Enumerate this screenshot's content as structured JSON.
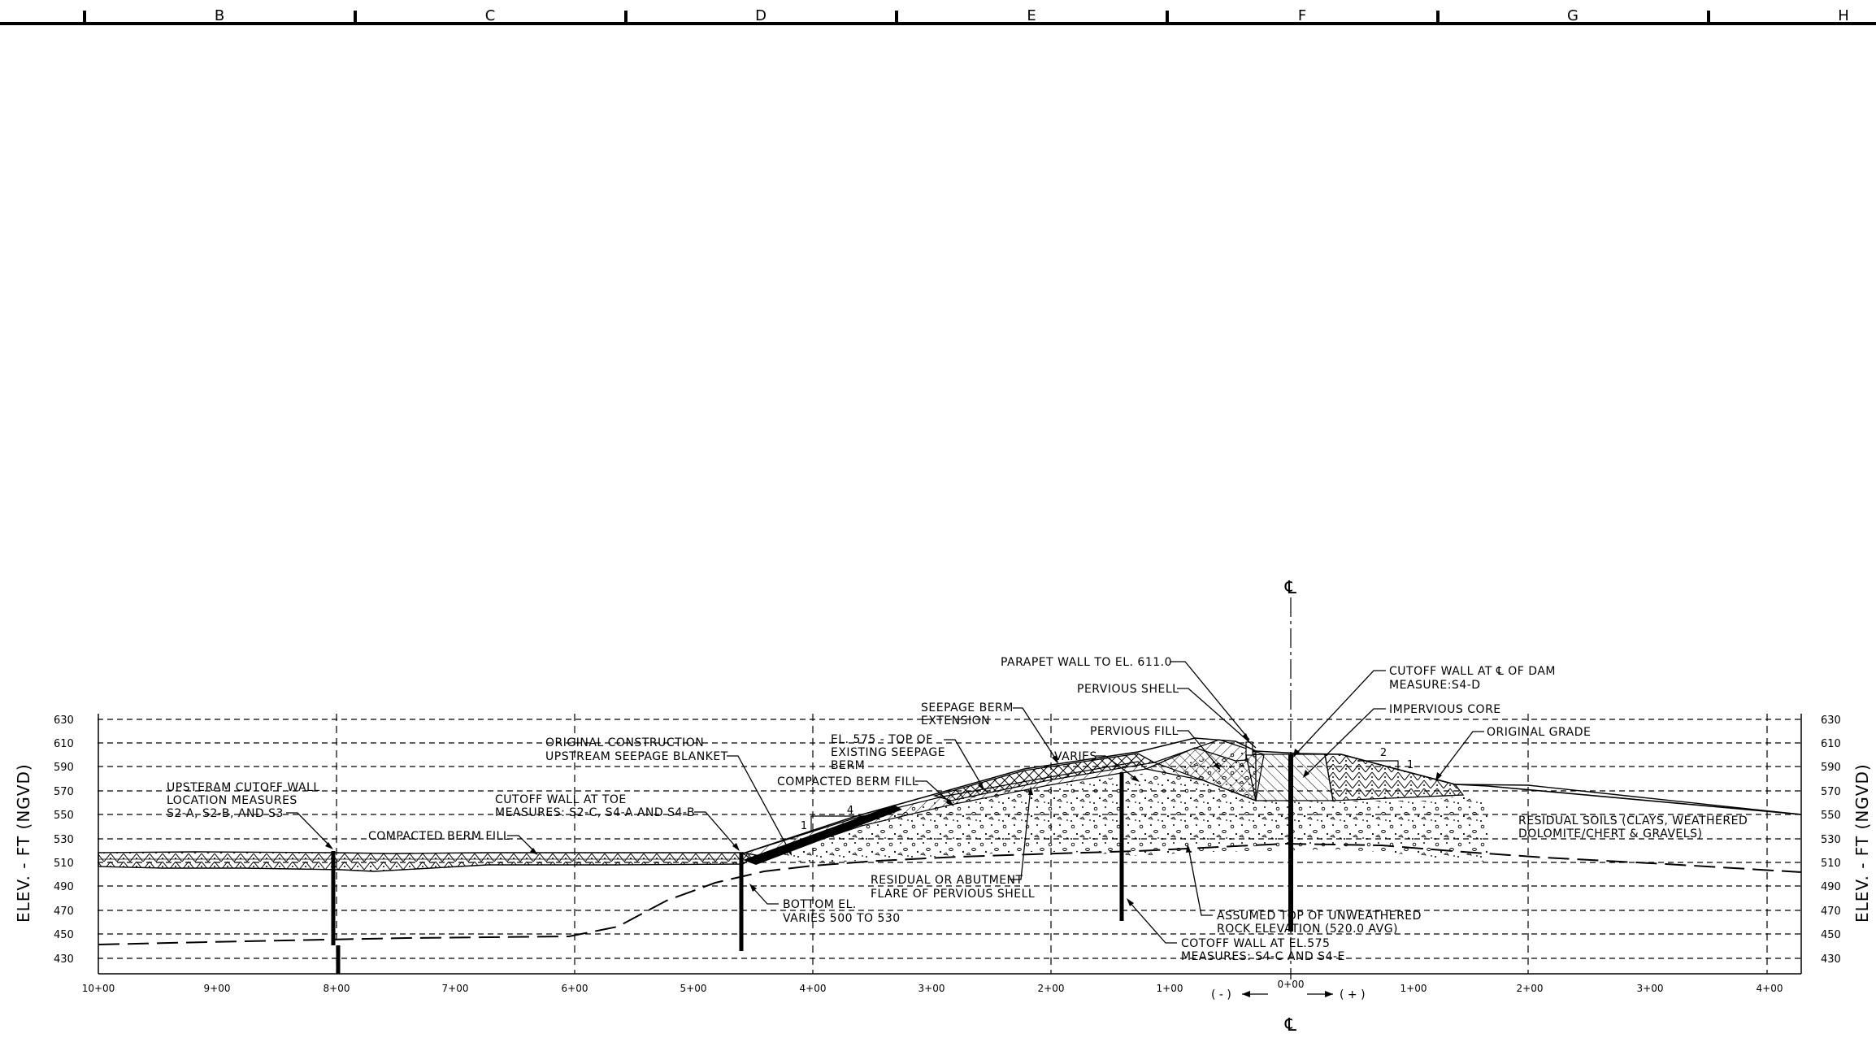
{
  "sheet": {
    "zone_letters": [
      "B",
      "C",
      "D",
      "E",
      "F",
      "G",
      "H"
    ]
  },
  "axes": {
    "y_title_left": "ELEV. - FT (NGVD)",
    "y_title_right": "ELEV. - FT (NGVD)",
    "y_ticks": [
      "630",
      "610",
      "590",
      "570",
      "550",
      "530",
      "510",
      "490",
      "470",
      "450",
      "430"
    ],
    "x_ticks": [
      "10+00",
      "9+00",
      "8+00",
      "7+00",
      "6+00",
      "5+00",
      "4+00",
      "3+00",
      "2+00",
      "1+00",
      "0+00",
      "1+00",
      "2+00",
      "3+00",
      "4+00"
    ],
    "centerline_symbol": "℄",
    "direction_minus": "( - )",
    "direction_plus": "( + )"
  },
  "annotations": [
    {
      "id": "parapet-wall",
      "lines": [
        "PARAPET WALL TO EL. 611.0"
      ]
    },
    {
      "id": "pervious-shell",
      "lines": [
        "PERVIOUS SHELL"
      ]
    },
    {
      "id": "cutoff-wall-cl",
      "lines": [
        "CUTOFF WALL AT ℄ OF DAM",
        "MEASURE:S4-D"
      ]
    },
    {
      "id": "impervious-core",
      "lines": [
        "IMPERVIOUS CORE"
      ]
    },
    {
      "id": "original-grade",
      "lines": [
        "ORIGINAL GRADE"
      ]
    },
    {
      "id": "seepage-berm-extension",
      "lines": [
        "SEEPAGE BERM",
        "EXTENSION"
      ]
    },
    {
      "id": "pervious-fill",
      "lines": [
        "PERVIOUS FILL"
      ]
    },
    {
      "id": "varies",
      "lines": [
        "VARIES"
      ]
    },
    {
      "id": "original-construction",
      "lines": [
        "ORIGINAL CONSTRUCTION",
        "UPSTREAM SEEPAGE BLANKET"
      ]
    },
    {
      "id": "el-575",
      "lines": [
        "EL. 575 - TOP OF",
        "EXISTING SEEPAGE",
        "BERM"
      ]
    },
    {
      "id": "compacted-berm-fill-upper",
      "lines": [
        "COMPACTED BERM FILL"
      ]
    },
    {
      "id": "upstream-cutoff-wall",
      "lines": [
        "UPSTERAM CUTOFF WALL",
        "LOCATION MEASURES",
        "S2-A, S2-B, AND S3"
      ]
    },
    {
      "id": "cutoff-wall-toe",
      "lines": [
        "CUTOFF WALL AT TOE",
        "MEASURES: S2-C, S4-A AND S4-B"
      ]
    },
    {
      "id": "compacted-berm-fill-lower",
      "lines": [
        "COMPACTED BERM FILL"
      ]
    },
    {
      "id": "residual-soils",
      "lines": [
        "RESIDUAL SOILS (CLAYS, WEATHERED",
        "DOLOMITE/CHERT & GRAVELS)"
      ]
    },
    {
      "id": "residual-flare",
      "lines": [
        "RESIDUAL OR ABUTMENT",
        "FLARE OF PERVIOUS SHELL"
      ]
    },
    {
      "id": "bottom-el",
      "lines": [
        "BOTTOM EL.",
        "VARIES 500 TO 530"
      ]
    },
    {
      "id": "assumed-rock",
      "lines": [
        "ASSUMED TOP OF UNWEATHERED",
        "ROCK ELEVATION (520.0 AVG)"
      ]
    },
    {
      "id": "cutoff-wall-575",
      "lines": [
        "COTOFF WALL AT EL.575",
        "MEASURES: S4-C AND S4-E"
      ]
    }
  ],
  "slope_labels": {
    "upstream_run": "4",
    "upstream_rise": "1",
    "downstream_run": "2",
    "downstream_rise": "1"
  }
}
